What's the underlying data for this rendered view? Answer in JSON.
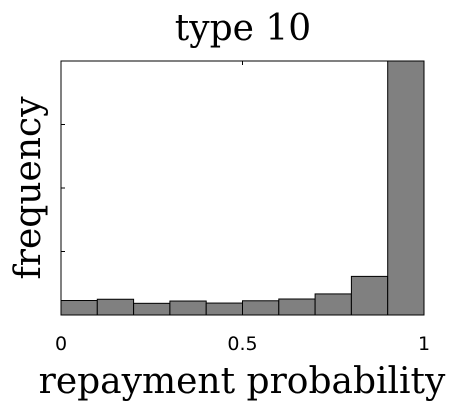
{
  "chart_data": {
    "type": "bar",
    "title": "type 10",
    "xlabel": "repayment probability",
    "ylabel": "frequency",
    "xlim": [
      0,
      1
    ],
    "x_ticks": [
      0,
      0.5,
      1
    ],
    "x_tick_labels": [
      "0",
      "0.5",
      "1"
    ],
    "y_tick_labels": [],
    "ylim": [
      0,
      1
    ],
    "grid": false,
    "bins": [
      {
        "start": 0.0,
        "end": 0.1,
        "value": 0.057
      },
      {
        "start": 0.1,
        "end": 0.2,
        "value": 0.062
      },
      {
        "start": 0.2,
        "end": 0.3,
        "value": 0.046
      },
      {
        "start": 0.3,
        "end": 0.4,
        "value": 0.055
      },
      {
        "start": 0.4,
        "end": 0.5,
        "value": 0.047
      },
      {
        "start": 0.5,
        "end": 0.6,
        "value": 0.056
      },
      {
        "start": 0.6,
        "end": 0.7,
        "value": 0.063
      },
      {
        "start": 0.7,
        "end": 0.8,
        "value": 0.083
      },
      {
        "start": 0.8,
        "end": 0.9,
        "value": 0.152
      },
      {
        "start": 0.9,
        "end": 1.0,
        "value": 1.0
      }
    ],
    "bar_color": "#808080",
    "edge_color": "#000000"
  }
}
